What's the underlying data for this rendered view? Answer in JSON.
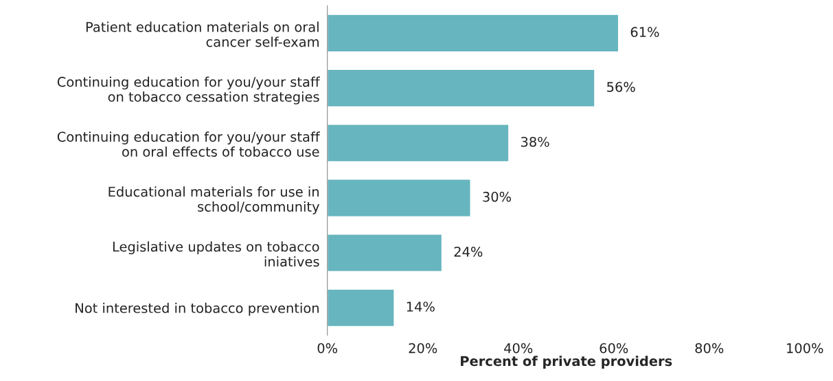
{
  "chart_data": {
    "type": "bar",
    "orientation": "horizontal",
    "categories": [
      "Patient education materials on oral\ncancer self-exam",
      "Continuing education for you/your staff\non tobacco cessation strategies",
      "Continuing education for you/your staff\non oral effects of tobacco use",
      "Educational materials for use in\nschool/community",
      "Legislative updates on tobacco\niniatives",
      "Not interested in tobacco prevention"
    ],
    "values": [
      61,
      56,
      38,
      30,
      24,
      14
    ],
    "value_labels": [
      "61%",
      "56%",
      "38%",
      "30%",
      "24%",
      "14%"
    ],
    "color": "#67b5be",
    "xlabel": "Percent of private providers",
    "xlim": [
      0,
      100
    ],
    "xticks": [
      {
        "value": 0,
        "label": "0%"
      },
      {
        "value": 20,
        "label": "20%"
      },
      {
        "value": 40,
        "label": "40%"
      },
      {
        "value": 60,
        "label": "60%"
      },
      {
        "value": 80,
        "label": "80%"
      },
      {
        "value": 100,
        "label": "100%"
      }
    ],
    "grid": false
  }
}
